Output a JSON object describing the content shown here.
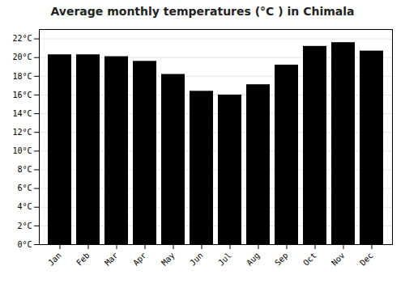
{
  "chart_data": {
    "type": "bar",
    "title": "Average monthly temperatures (°C ) in Chimala",
    "categories": [
      "Jan",
      "Feb",
      "Mar",
      "Apr",
      "May",
      "Jun",
      "Jul",
      "Aug",
      "Sep",
      "Oct",
      "Nov",
      "Dec"
    ],
    "values": [
      20.3,
      20.3,
      20.1,
      19.6,
      18.2,
      16.4,
      16.0,
      17.1,
      19.2,
      21.2,
      21.6,
      20.7
    ],
    "ylim": [
      0,
      23
    ],
    "yticks": [
      {
        "value": 0,
        "label": "0°C"
      },
      {
        "value": 2,
        "label": "2°C"
      },
      {
        "value": 4,
        "label": "4°C"
      },
      {
        "value": 6,
        "label": "6°C"
      },
      {
        "value": 8,
        "label": "8°C"
      },
      {
        "value": 10,
        "label": "10°C"
      },
      {
        "value": 12,
        "label": "12°C"
      },
      {
        "value": 14,
        "label": "14°C"
      },
      {
        "value": 16,
        "label": "16°C"
      },
      {
        "value": 18,
        "label": "18°C"
      },
      {
        "value": 20,
        "label": "20°C"
      },
      {
        "value": 22,
        "label": "22°C"
      }
    ],
    "grid": true
  }
}
